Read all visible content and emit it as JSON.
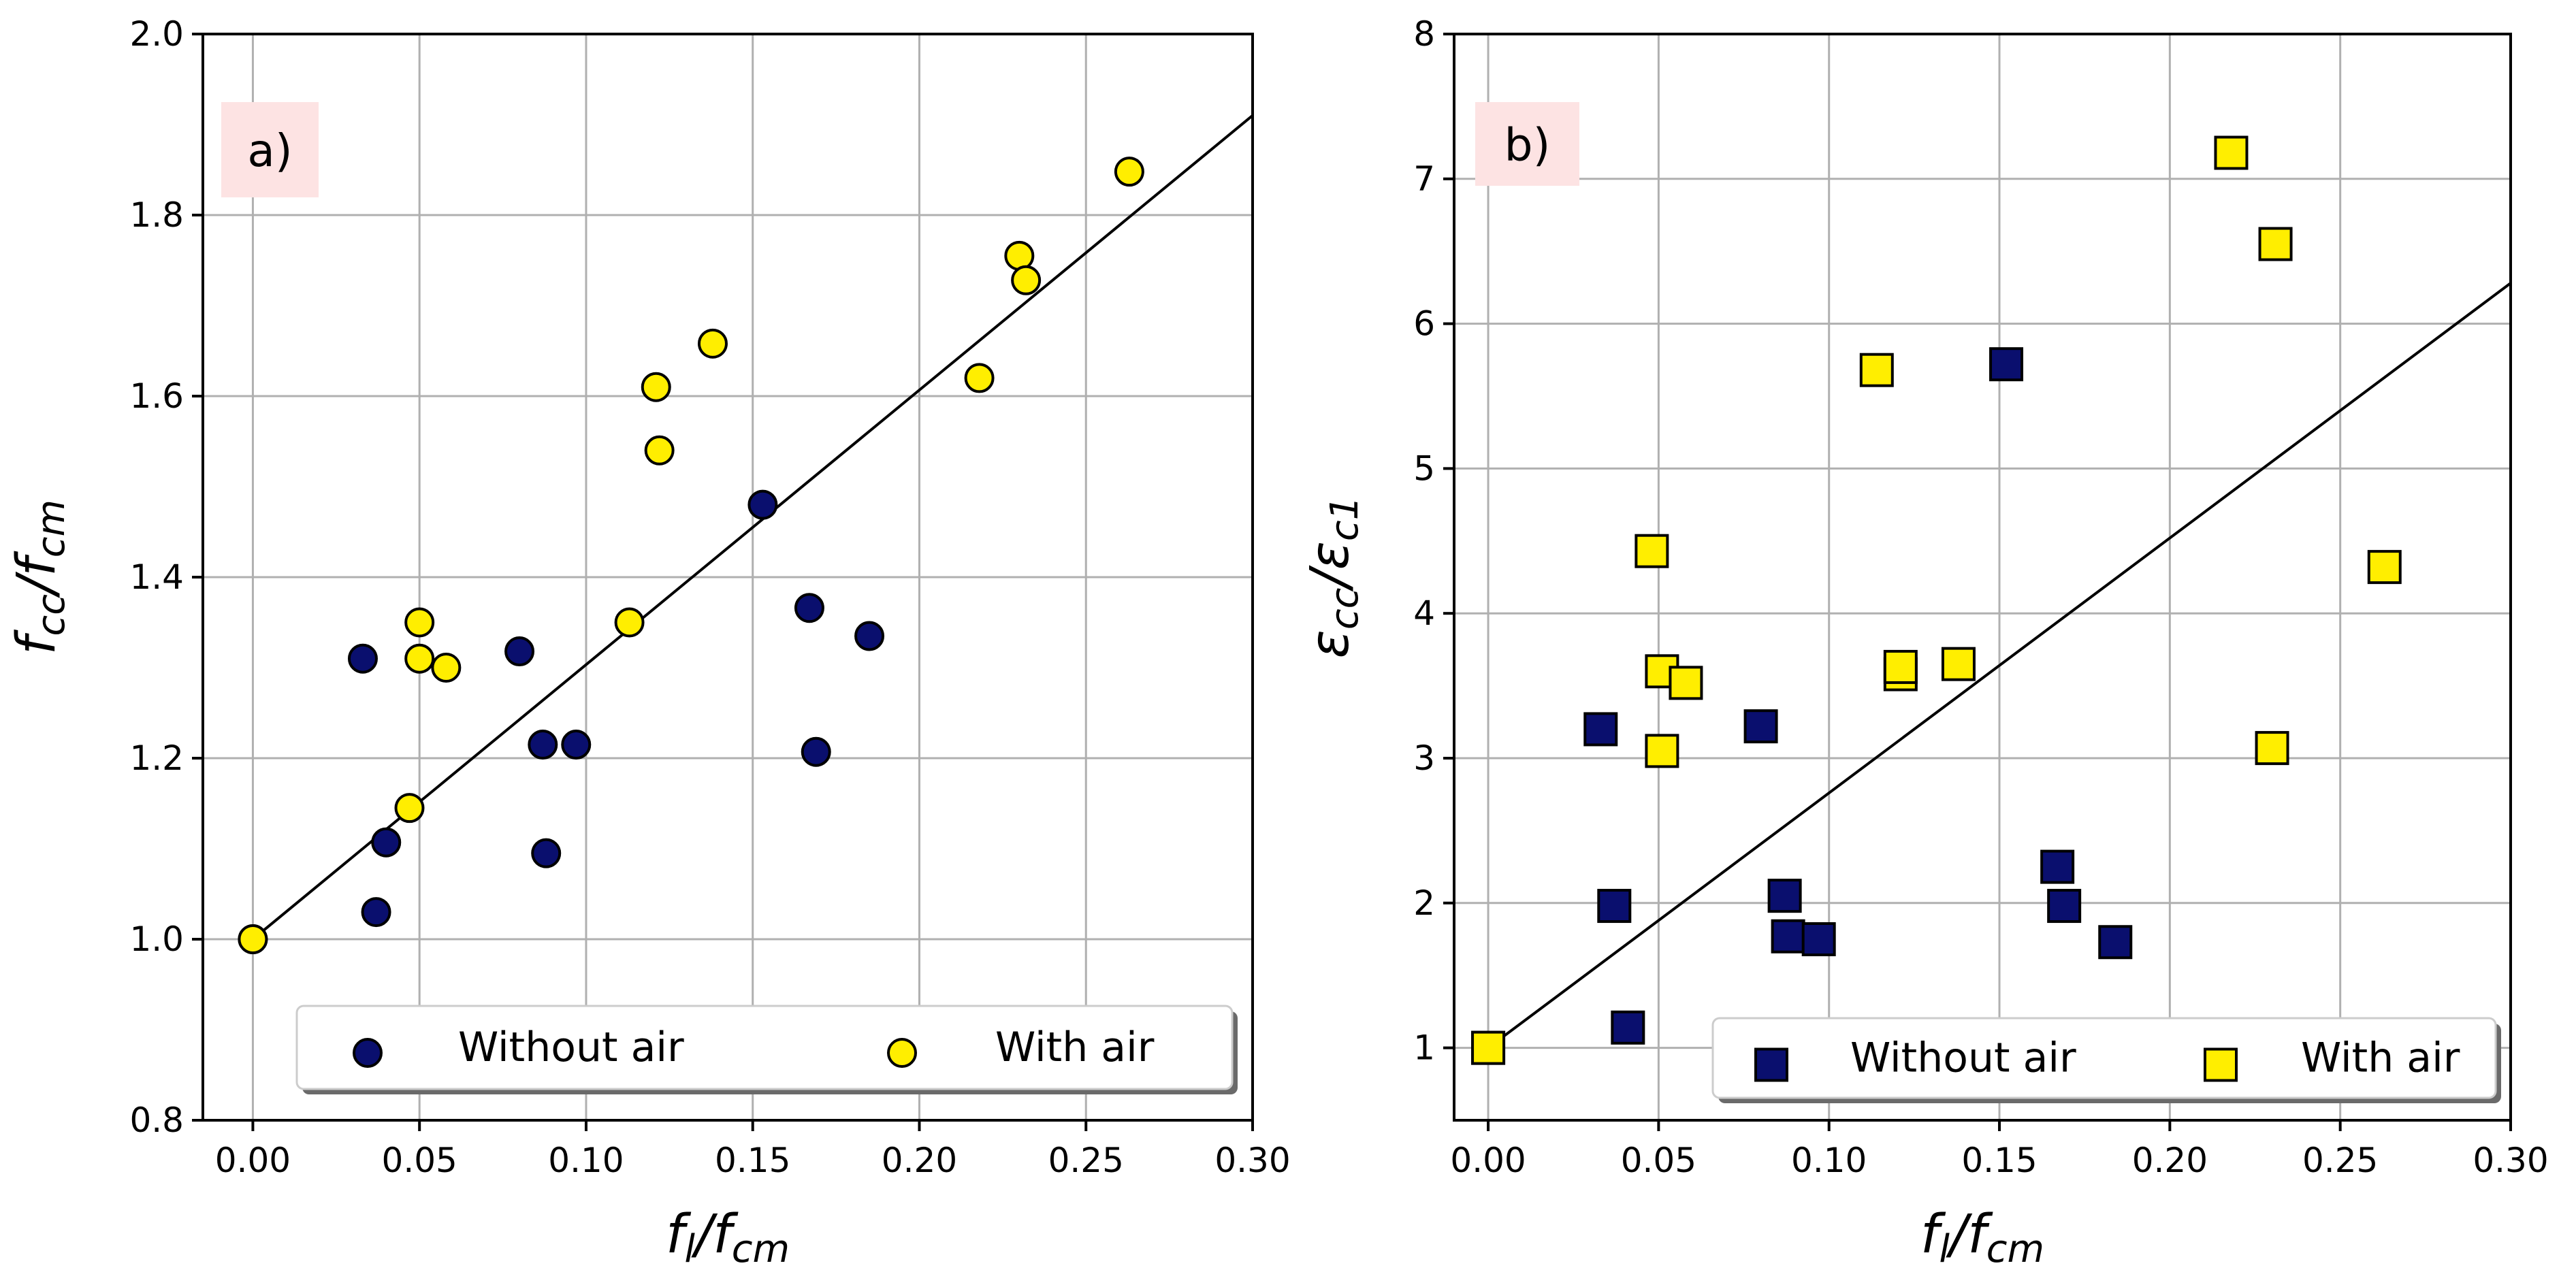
{
  "chart_data": [
    {
      "type": "scatter",
      "panel_label": "a)",
      "xlabel": {
        "main": "f",
        "sub": "l",
        "sep": "/",
        "main2": "f",
        "sub2": "cm"
      },
      "ylabel": {
        "main": "f",
        "sub": "cc",
        "sep": "/",
        "main2": "f",
        "sub2": "cm"
      },
      "xlim": [
        -0.015,
        0.3
      ],
      "ylim": [
        0.8,
        2.0
      ],
      "xticks": [
        0.0,
        0.05,
        0.1,
        0.15,
        0.2,
        0.25,
        0.3
      ],
      "xtick_labels": [
        "0.00",
        "0.05",
        "0.10",
        "0.15",
        "0.20",
        "0.25",
        "0.30"
      ],
      "yticks": [
        0.8,
        1.0,
        1.2,
        1.4,
        1.6,
        1.8,
        2.0
      ],
      "ytick_labels": [
        "0.8",
        "1.0",
        "1.2",
        "1.4",
        "1.6",
        "1.8",
        "2.0"
      ],
      "grid": true,
      "legend_position": "bottom-right",
      "marker": "circle",
      "series": [
        {
          "name": "Without air",
          "color": "#0a0f6e",
          "points": [
            [
              0.033,
              1.31
            ],
            [
              0.037,
              1.03
            ],
            [
              0.04,
              1.107
            ],
            [
              0.08,
              1.318
            ],
            [
              0.087,
              1.215
            ],
            [
              0.088,
              1.095
            ],
            [
              0.097,
              1.215
            ],
            [
              0.153,
              1.48
            ],
            [
              0.167,
              1.366
            ],
            [
              0.169,
              1.207
            ],
            [
              0.185,
              1.335
            ],
            [
              0.0,
              1.0
            ]
          ]
        },
        {
          "name": "With air",
          "color": "#ffee00",
          "points": [
            [
              0.0,
              1.0
            ],
            [
              0.047,
              1.145
            ],
            [
              0.05,
              1.35
            ],
            [
              0.05,
              1.31
            ],
            [
              0.058,
              1.3
            ],
            [
              0.113,
              1.35
            ],
            [
              0.121,
              1.61
            ],
            [
              0.122,
              1.54
            ],
            [
              0.138,
              1.658
            ],
            [
              0.218,
              1.62
            ],
            [
              0.23,
              1.755
            ],
            [
              0.232,
              1.728
            ],
            [
              0.263,
              1.848
            ]
          ]
        }
      ],
      "fit_line": {
        "x": [
          0.0,
          0.3
        ],
        "y": [
          1.0,
          1.91
        ]
      }
    },
    {
      "type": "scatter",
      "panel_label": "b)",
      "xlabel": {
        "main": "f",
        "sub": "l",
        "sep": "/",
        "main2": "f",
        "sub2": "cm"
      },
      "ylabel": {
        "main": "ε",
        "sub": "cc",
        "sep": "/",
        "main2": "ε",
        "sub2": "c1"
      },
      "xlim": [
        -0.01,
        0.3
      ],
      "ylim": [
        0.5,
        8.0
      ],
      "xticks": [
        0.0,
        0.05,
        0.1,
        0.15,
        0.2,
        0.25,
        0.3
      ],
      "xtick_labels": [
        "0.00",
        "0.05",
        "0.10",
        "0.15",
        "0.20",
        "0.25",
        "0.30"
      ],
      "yticks": [
        1,
        2,
        3,
        4,
        5,
        6,
        7,
        8
      ],
      "ytick_labels": [
        "1",
        "2",
        "3",
        "4",
        "5",
        "6",
        "7",
        "8"
      ],
      "grid": true,
      "legend_position": "bottom-right",
      "marker": "square",
      "series": [
        {
          "name": "Without air",
          "color": "#0a0f6e",
          "points": [
            [
              0.0,
              1.0
            ],
            [
              0.033,
              3.2
            ],
            [
              0.037,
              1.98
            ],
            [
              0.041,
              1.14
            ],
            [
              0.08,
              3.22
            ],
            [
              0.087,
              2.05
            ],
            [
              0.088,
              1.77
            ],
            [
              0.097,
              1.75
            ],
            [
              0.152,
              5.72
            ],
            [
              0.167,
              2.25
            ],
            [
              0.169,
              1.98
            ],
            [
              0.184,
              1.73
            ]
          ]
        },
        {
          "name": "With air",
          "color": "#ffee00",
          "points": [
            [
              0.0,
              1.0
            ],
            [
              0.048,
              4.43
            ],
            [
              0.051,
              3.6
            ],
            [
              0.051,
              3.05
            ],
            [
              0.058,
              3.52
            ],
            [
              0.114,
              5.68
            ],
            [
              0.121,
              3.58
            ],
            [
              0.121,
              3.63
            ],
            [
              0.138,
              3.65
            ],
            [
              0.218,
              7.18
            ],
            [
              0.23,
              3.07
            ],
            [
              0.231,
              6.55
            ],
            [
              0.263,
              4.32
            ]
          ]
        }
      ],
      "fit_line": {
        "x": [
          0.0,
          0.3
        ],
        "y": [
          1.0,
          6.28
        ]
      }
    }
  ]
}
